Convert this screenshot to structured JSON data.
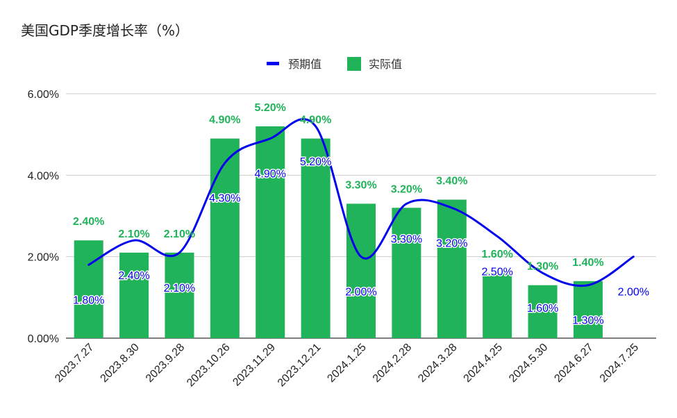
{
  "chart_data": {
    "type": "bar",
    "title": "美国GDP季度增长率（%）",
    "categories": [
      "2023.7.27",
      "2023.8.30",
      "2023.9.28",
      "2023.10.26",
      "2023.11.29",
      "2023.12.21",
      "2024.1.25",
      "2024.2.28",
      "2024.3.28",
      "2024.4.25",
      "2024.5.30",
      "2024.6.27",
      "2024.7.25"
    ],
    "series": [
      {
        "name": "预期值",
        "kind": "line",
        "color": "#0000ee",
        "values": [
          1.8,
          2.4,
          2.1,
          4.3,
          4.9,
          5.2,
          2.0,
          3.3,
          3.2,
          2.5,
          1.6,
          1.3,
          2.0
        ],
        "labels": [
          "1.80%",
          "2.40%",
          "2.10%",
          "4.30%",
          "4.90%",
          "5.20%",
          "2.00%",
          "3.30%",
          "3.20%",
          "2.50%",
          "1.60%",
          "1.30%",
          "2.00%"
        ]
      },
      {
        "name": "实际值",
        "kind": "bar",
        "color": "#20b35a",
        "values": [
          2.4,
          2.1,
          2.1,
          4.9,
          5.2,
          4.9,
          3.3,
          3.2,
          3.4,
          1.6,
          1.3,
          1.4,
          null
        ],
        "labels": [
          "2.40%",
          "2.10%",
          "2.10%",
          "4.90%",
          "5.20%",
          "4.90%",
          "3.30%",
          "3.20%",
          "3.40%",
          "1.60%",
          "1.30%",
          "1.40%",
          ""
        ]
      }
    ],
    "ylim": [
      0,
      6
    ],
    "yticks": [
      "0.00%",
      "2.00%",
      "4.00%",
      "6.00%"
    ],
    "ytick_values": [
      0,
      2,
      4,
      6
    ],
    "grid": true,
    "legend": "top"
  }
}
